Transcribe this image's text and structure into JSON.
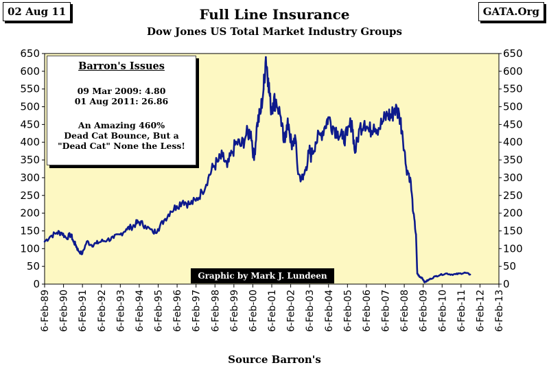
{
  "header": {
    "date": "02 Aug 11",
    "source_tag": "GATA.Org",
    "title": "Full Line Insurance",
    "subtitle": "Dow Jones US Total Market Industry Groups"
  },
  "footer": {
    "source": "Source Barron's"
  },
  "note": {
    "title": "Barron's Issues",
    "line1": "09 Mar 2009:  4.80",
    "line2": "01 Aug 2011: 26.86",
    "line3": "An Amazing 460%",
    "line4": "Dead Cat Bounce, But a",
    "line5": "\"Dead Cat\" None the Less!"
  },
  "credit": "Graphic by Mark J. Lundeen",
  "chart_data": {
    "type": "line",
    "title": "Full Line Insurance",
    "subtitle": "Dow Jones US Total Market Industry Groups",
    "xlabel": "Source Barron's",
    "ylabel": "",
    "ylim": [
      0,
      650
    ],
    "yticks": [
      0,
      50,
      100,
      150,
      200,
      250,
      300,
      350,
      400,
      450,
      500,
      550,
      600,
      650
    ],
    "y_axis_both_sides": true,
    "xlim": [
      "1989-02-06",
      "2013-02-06"
    ],
    "xticks": [
      "6-Feb-89",
      "6-Feb-90",
      "6-Feb-91",
      "6-Feb-92",
      "6-Feb-93",
      "6-Feb-94",
      "6-Feb-95",
      "6-Feb-96",
      "6-Feb-97",
      "6-Feb-98",
      "6-Feb-99",
      "6-Feb-00",
      "6-Feb-01",
      "6-Feb-02",
      "6-Feb-03",
      "6-Feb-04",
      "6-Feb-05",
      "6-Feb-06",
      "6-Feb-07",
      "6-Feb-08",
      "6-Feb-09",
      "6-Feb-10",
      "6-Feb-11",
      "6-Feb-12",
      "6-Feb-13"
    ],
    "grid": false,
    "legend": "none",
    "colors": {
      "line": "#0d1a8c",
      "plot_bg": "#fdf8c2"
    },
    "series": [
      {
        "x": [
          "1989-02-06",
          "1989-06-01",
          "1989-10-01",
          "1990-01-01",
          "1990-04-01",
          "1990-07-01",
          "1990-08-15",
          "1990-10-01",
          "1990-11-15",
          "1991-02-01",
          "1991-05-01",
          "1991-08-01",
          "1991-11-01",
          "1992-02-01",
          "1992-06-01",
          "1992-10-01",
          "1993-02-01",
          "1993-06-01",
          "1993-09-01",
          "1993-12-01",
          "1994-02-01",
          "1994-06-01",
          "1994-11-01",
          "1995-02-01",
          "1995-06-01",
          "1995-10-01",
          "1996-02-01",
          "1996-06-01",
          "1996-10-01",
          "1997-02-01",
          "1997-06-01",
          "1997-10-01",
          "1998-01-01",
          "1998-04-01",
          "1998-07-01",
          "1998-10-01",
          "1999-01-01",
          "1999-04-01",
          "1999-07-01",
          "1999-10-01",
          "2000-01-01",
          "2000-03-01",
          "2000-05-01",
          "2000-07-01",
          "2000-09-01",
          "2000-10-15",
          "2000-12-01",
          "2001-01-15",
          "2001-03-01",
          "2001-05-01",
          "2001-08-01",
          "2001-09-25",
          "2001-11-01",
          "2002-01-01",
          "2002-03-01",
          "2002-05-01",
          "2002-07-01",
          "2002-10-01",
          "2002-12-01",
          "2003-02-01",
          "2003-03-10",
          "2003-06-01",
          "2003-09-01",
          "2003-12-01",
          "2004-02-01",
          "2004-05-01",
          "2004-08-01",
          "2004-11-01",
          "2005-02-01",
          "2005-05-01",
          "2005-07-01",
          "2005-10-01",
          "2006-01-01",
          "2006-04-01",
          "2006-07-01",
          "2006-10-01",
          "2007-01-01",
          "2007-04-01",
          "2007-06-01",
          "2007-08-01",
          "2007-11-01",
          "2008-01-01",
          "2008-03-15",
          "2008-06-01",
          "2008-08-01",
          "2008-09-20",
          "2008-10-15",
          "2008-12-01",
          "2009-01-15",
          "2009-03-09",
          "2009-05-01",
          "2009-07-01",
          "2009-10-01",
          "2010-01-01",
          "2010-05-01",
          "2010-08-01",
          "2010-11-01",
          "2011-02-01",
          "2011-05-01",
          "2011-08-01"
        ],
        "y": [
          120,
          135,
          145,
          145,
          130,
          140,
          120,
          110,
          95,
          85,
          120,
          110,
          115,
          120,
          125,
          130,
          140,
          155,
          160,
          170,
          175,
          165,
          145,
          155,
          180,
          205,
          220,
          235,
          225,
          235,
          260,
          300,
          330,
          345,
          360,
          330,
          370,
          400,
          390,
          420,
          430,
          350,
          455,
          480,
          550,
          640,
          580,
          500,
          510,
          520,
          470,
          400,
          430,
          450,
          380,
          420,
          310,
          295,
          330,
          375,
          360,
          400,
          420,
          445,
          470,
          445,
          430,
          410,
          420,
          460,
          370,
          440,
          460,
          430,
          450,
          440,
          460,
          480,
          470,
          495,
          480,
          430,
          330,
          300,
          200,
          140,
          30,
          20,
          18,
          5,
          10,
          15,
          22,
          26,
          30,
          27,
          28,
          30,
          32,
          27
        ]
      }
    ]
  }
}
